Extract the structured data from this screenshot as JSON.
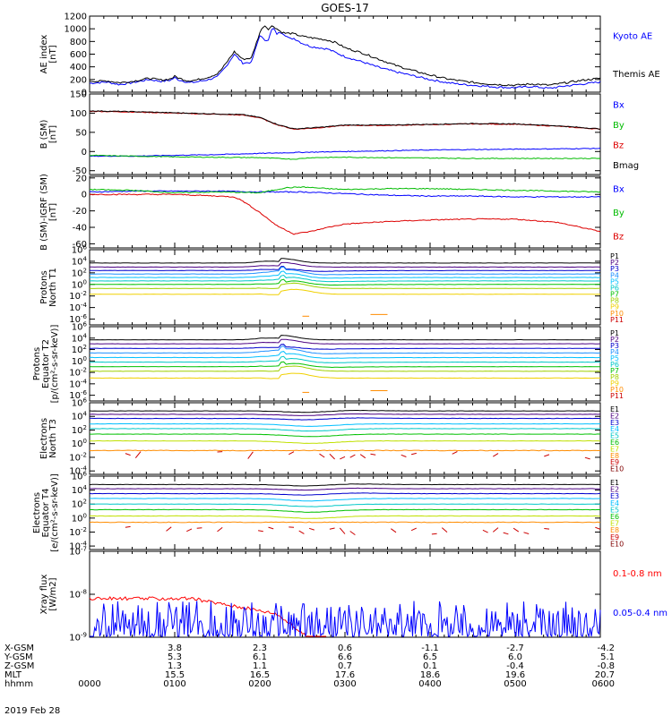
{
  "figure": {
    "title": "GOES-17",
    "date_label": "2019 Feb 28",
    "time_label": "hhmm"
  },
  "chart_data": [
    {
      "type": "line",
      "panel": "ae",
      "ylabel": [
        "AE index",
        "[nT]"
      ],
      "yticks": [
        "1200",
        "1000",
        "800",
        "600",
        "400",
        "200",
        "0"
      ],
      "ylim": [
        0,
        1200
      ],
      "legend": [
        {
          "name": "Kyoto AE",
          "color": "#0000ff"
        },
        {
          "name": "Themis AE",
          "color": "#000000"
        }
      ],
      "series": [
        {
          "name": "Kyoto AE",
          "color": "#0000ff",
          "x": [
            0,
            0.1,
            0.2,
            0.35,
            0.5,
            0.7,
            0.85,
            0.95,
            1.0,
            1.05,
            1.1,
            1.15,
            1.25,
            1.4,
            1.5,
            1.55,
            1.6,
            1.7,
            1.8,
            1.9,
            2.0,
            2.05,
            2.1,
            2.15,
            2.2,
            2.25,
            2.3,
            2.35,
            2.4,
            2.5,
            2.6,
            2.7,
            2.8,
            2.9,
            3.0,
            3.2,
            3.4,
            3.6,
            3.8,
            4.0,
            4.2,
            4.4,
            4.6,
            4.8,
            5.0,
            5.2,
            5.4,
            5.6,
            5.8,
            6.0
          ],
          "values": [
            140,
            150,
            160,
            120,
            150,
            200,
            170,
            190,
            230,
            190,
            180,
            150,
            160,
            200,
            240,
            320,
            400,
            600,
            460,
            470,
            900,
            820,
            830,
            1020,
            920,
            950,
            900,
            840,
            850,
            770,
            720,
            700,
            680,
            620,
            560,
            480,
            390,
            320,
            260,
            200,
            150,
            120,
            100,
            80,
            70,
            90,
            60,
            100,
            130,
            160
          ]
        },
        {
          "name": "Themis AE",
          "color": "#000000",
          "x": [
            0,
            0.1,
            0.2,
            0.35,
            0.5,
            0.7,
            0.85,
            0.95,
            1.0,
            1.05,
            1.1,
            1.15,
            1.25,
            1.4,
            1.5,
            1.55,
            1.6,
            1.7,
            1.8,
            1.9,
            2.0,
            2.05,
            2.1,
            2.15,
            2.2,
            2.25,
            2.3,
            2.35,
            2.4,
            2.5,
            2.6,
            2.7,
            2.8,
            2.9,
            3.0,
            3.2,
            3.4,
            3.6,
            3.8,
            4.0,
            4.2,
            4.4,
            4.6,
            4.8,
            5.0,
            5.2,
            5.4,
            5.6,
            5.8,
            6.0
          ],
          "values": [
            180,
            170,
            180,
            150,
            170,
            220,
            190,
            210,
            250,
            220,
            200,
            180,
            190,
            240,
            290,
            360,
            450,
            640,
            520,
            540,
            940,
            1060,
            1000,
            1050,
            1000,
            950,
            930,
            930,
            920,
            880,
            860,
            840,
            820,
            780,
            700,
            620,
            520,
            420,
            340,
            270,
            210,
            170,
            140,
            120,
            110,
            130,
            110,
            150,
            190,
            220
          ]
        }
      ]
    },
    {
      "type": "line",
      "panel": "b-sm",
      "ylabel": [
        "B (SM)",
        "[nT]"
      ],
      "yticks": [
        "150",
        "100",
        "50",
        "0",
        "-50"
      ],
      "ylim": [
        -60,
        150
      ],
      "legend": [
        {
          "name": "Bx",
          "color": "#0000ff"
        },
        {
          "name": "By",
          "color": "#00bb00"
        },
        {
          "name": "Bz",
          "color": "#dd0000"
        },
        {
          "name": "Bmag",
          "color": "#000000"
        }
      ],
      "series": [
        {
          "name": "Bz",
          "color": "#dd0000",
          "x": [
            0,
            0.5,
            1.0,
            1.5,
            1.8,
            2.0,
            2.2,
            2.4,
            2.7,
            3.0,
            3.5,
            4.0,
            4.5,
            5.0,
            5.5,
            6.0
          ],
          "values": [
            105,
            103,
            100,
            97,
            95,
            88,
            70,
            58,
            62,
            68,
            68,
            70,
            72,
            71,
            66,
            58
          ]
        },
        {
          "name": "Bmag",
          "color": "#000000",
          "x": [
            0,
            0.5,
            1.0,
            1.5,
            1.8,
            2.0,
            2.2,
            2.4,
            2.7,
            3.0,
            3.5,
            4.0,
            4.5,
            5.0,
            5.5,
            6.0
          ],
          "values": [
            106,
            104,
            101,
            98,
            96,
            89,
            71,
            59,
            63,
            69,
            69,
            71,
            73,
            72,
            67,
            59
          ]
        },
        {
          "name": "Bx",
          "color": "#0000ff",
          "x": [
            0,
            0.5,
            1.0,
            1.5,
            2.0,
            2.5,
            3.0,
            3.5,
            4.0,
            4.5,
            5.0,
            5.5,
            6.0
          ],
          "values": [
            -12,
            -12,
            -10,
            -8,
            -5,
            -2,
            0,
            2,
            4,
            5,
            6,
            7,
            8
          ]
        },
        {
          "name": "By",
          "color": "#00bb00",
          "x": [
            0,
            0.5,
            1.0,
            1.5,
            2.0,
            2.4,
            2.6,
            3.0,
            3.5,
            4.0,
            4.5,
            5.0,
            5.5,
            6.0
          ],
          "values": [
            -10,
            -12,
            -14,
            -15,
            -16,
            -20,
            -16,
            -15,
            -16,
            -17,
            -18,
            -18,
            -18,
            -18
          ]
        }
      ]
    },
    {
      "type": "line",
      "panel": "b-sm-igrf",
      "ylabel": [
        "B (SM)-IGRF (SM)",
        "[nT]"
      ],
      "yticks": [
        "20",
        "0",
        "-20",
        "-40",
        "-60"
      ],
      "ylim": [
        -65,
        22
      ],
      "legend": [
        {
          "name": "Bx",
          "color": "#0000ff"
        },
        {
          "name": "By",
          "color": "#00bb00"
        },
        {
          "name": "Bz",
          "color": "#dd0000"
        }
      ],
      "series": [
        {
          "name": "Bx",
          "color": "#0000ff",
          "x": [
            0,
            0.5,
            1.0,
            1.5,
            2.0,
            2.5,
            3.0,
            3.5,
            4.0,
            4.5,
            5.0,
            5.5,
            6.0
          ],
          "values": [
            3,
            4,
            4,
            4,
            3,
            3,
            1,
            -1,
            -2,
            -2,
            -3,
            -3,
            -3
          ]
        },
        {
          "name": "By",
          "color": "#00bb00",
          "x": [
            0,
            0.5,
            1.0,
            1.5,
            2.0,
            2.3,
            2.5,
            2.8,
            3.0,
            3.5,
            4.0,
            4.5,
            5.0,
            5.5,
            6.0
          ],
          "values": [
            6,
            5,
            2,
            3,
            2,
            8,
            9,
            7,
            6,
            7,
            7,
            6,
            5,
            4,
            3
          ]
        },
        {
          "name": "Bz",
          "color": "#dd0000",
          "x": [
            0,
            0.5,
            1.0,
            1.5,
            1.7,
            1.8,
            2.0,
            2.2,
            2.4,
            2.6,
            2.8,
            3.0,
            3.5,
            4.0,
            4.5,
            5.0,
            5.5,
            6.0
          ],
          "values": [
            0,
            0,
            0,
            -2,
            -3,
            -8,
            -22,
            -38,
            -48,
            -45,
            -40,
            -36,
            -33,
            -31,
            -30,
            -30,
            -34,
            -45
          ]
        }
      ]
    },
    {
      "type": "line",
      "panel": "protons-north",
      "ylabel": [
        "Protons",
        "North T1"
      ],
      "yscale": "log",
      "yticks": [
        "10^6",
        "10^4",
        "10^2",
        "10^0",
        "10^-2",
        "10^-4",
        "10^-6"
      ],
      "ylim_log10": [
        -7,
        6
      ],
      "channels": [
        {
          "name": "P1",
          "color": "#000000",
          "level": 3.7
        },
        {
          "name": "P2",
          "color": "#4b0082",
          "level": 3.0
        },
        {
          "name": "P3",
          "color": "#0000cd",
          "level": 2.4
        },
        {
          "name": "P4",
          "color": "#1e90ff",
          "level": 1.8
        },
        {
          "name": "P5",
          "color": "#00bfff",
          "level": 1.2
        },
        {
          "name": "P6",
          "color": "#00c8c8",
          "level": 0.6
        },
        {
          "name": "P7",
          "color": "#00c000",
          "level": 0.0
        },
        {
          "name": "P8",
          "color": "#a0d000",
          "level": -0.7
        },
        {
          "name": "P9",
          "color": "#f0d000",
          "level": -1.7
        },
        {
          "name": "P10",
          "color": "#ff8c00",
          "level": -5.5
        },
        {
          "name": "P11",
          "color": "#cc0000",
          "level": -6.5
        }
      ]
    },
    {
      "type": "line",
      "panel": "protons-equator",
      "ylabel": [
        "Protons",
        "Equator T2",
        "[p/(cm²-s-sr-keV)]"
      ],
      "yscale": "log",
      "yticks": [
        "10^6",
        "10^4",
        "10^2",
        "10^0",
        "10^-2",
        "10^-4",
        "10^-6"
      ],
      "ylim_log10": [
        -7,
        6
      ],
      "channels": [
        {
          "name": "P1",
          "color": "#000000",
          "level": 3.7
        },
        {
          "name": "P2",
          "color": "#4b0082",
          "level": 3.0
        },
        {
          "name": "P3",
          "color": "#0000cd",
          "level": 2.2
        },
        {
          "name": "P4",
          "color": "#1e90ff",
          "level": 1.4
        },
        {
          "name": "P5",
          "color": "#00bfff",
          "level": 0.6
        },
        {
          "name": "P6",
          "color": "#00c8c8",
          "level": -0.2
        },
        {
          "name": "P7",
          "color": "#00c000",
          "level": -1.0
        },
        {
          "name": "P8",
          "color": "#a0d000",
          "level": -1.8
        },
        {
          "name": "P9",
          "color": "#f0d000",
          "level": -3.0
        },
        {
          "name": "P10",
          "color": "#ff8c00",
          "level": -5.5
        },
        {
          "name": "P11",
          "color": "#cc0000",
          "level": -6.5
        }
      ]
    },
    {
      "type": "line",
      "panel": "electrons-north",
      "ylabel": [
        "Electrons",
        "North T3"
      ],
      "yscale": "log",
      "yticks": [
        "10^6",
        "10^4",
        "10^2",
        "10^0",
        "10^-2",
        "10^-4"
      ],
      "ylim_log10": [
        -4.5,
        6
      ],
      "channels": [
        {
          "name": "E1",
          "color": "#000000",
          "level": 4.8
        },
        {
          "name": "E2",
          "color": "#4b0082",
          "level": 4.3
        },
        {
          "name": "E3",
          "color": "#0000cd",
          "level": 3.7
        },
        {
          "name": "E4",
          "color": "#00bfff",
          "level": 2.9
        },
        {
          "name": "E5",
          "color": "#00c8c8",
          "level": 2.2
        },
        {
          "name": "E6",
          "color": "#00c000",
          "level": 1.4
        },
        {
          "name": "E7",
          "color": "#c0e000",
          "level": 0.4
        },
        {
          "name": "E8",
          "color": "#ff8c00",
          "level": -1.0
        },
        {
          "name": "E9",
          "color": "#cc0000",
          "level": -1.7
        },
        {
          "name": "E10",
          "color": "#800000",
          "level": -4.2
        }
      ]
    },
    {
      "type": "line",
      "panel": "electrons-equator",
      "ylabel": [
        "Electrons",
        "Equator T4",
        "[e/(cm²-s-sr-keV)]"
      ],
      "yscale": "log",
      "yticks": [
        "10^6",
        "10^4",
        "10^2",
        "10^0",
        "10^-2",
        "10^-4"
      ],
      "ylim_log10": [
        -4.5,
        6
      ],
      "channels": [
        {
          "name": "E1",
          "color": "#000000",
          "level": 4.8
        },
        {
          "name": "E2",
          "color": "#4b0082",
          "level": 4.2
        },
        {
          "name": "E3",
          "color": "#0000cd",
          "level": 3.5
        },
        {
          "name": "E4",
          "color": "#00bfff",
          "level": 2.8
        },
        {
          "name": "E5",
          "color": "#00c8c8",
          "level": 2.0
        },
        {
          "name": "E6",
          "color": "#00c000",
          "level": 1.2
        },
        {
          "name": "E7",
          "color": "#c0e000",
          "level": 0.3
        },
        {
          "name": "E8",
          "color": "#ff8c00",
          "level": -0.6
        },
        {
          "name": "E9",
          "color": "#cc0000",
          "level": -1.8
        },
        {
          "name": "E10",
          "color": "#800000",
          "level": -4.2
        }
      ]
    },
    {
      "type": "line",
      "panel": "xray",
      "ylabel": [
        "Xray flux",
        "[W/m2]"
      ],
      "yscale": "log",
      "yticks": [
        "10^-7",
        "10^-8",
        "10^-9"
      ],
      "ylim_log10": [
        -9,
        -7
      ],
      "legend": [
        {
          "name": "0.1-0.8 nm",
          "color": "#ff0000"
        },
        {
          "name": "0.05-0.4 nm",
          "color": "#0000ff"
        }
      ]
    }
  ],
  "x_axis": {
    "range_hours": [
      0,
      6
    ],
    "rows": [
      {
        "label": "X-GSM",
        "values": [
          "",
          "3.8",
          "2.3",
          "0.6",
          "-1.1",
          "-2.7",
          "-4.2"
        ]
      },
      {
        "label": "Y-GSM",
        "values": [
          "",
          "5.3",
          "6.1",
          "6.6",
          "6.5",
          "6.0",
          "5.1"
        ]
      },
      {
        "label": "Z-GSM",
        "values": [
          "",
          "1.3",
          "1.1",
          "0.7",
          "0.1",
          "-0.4",
          "-0.8"
        ]
      },
      {
        "label": "MLT",
        "values": [
          "",
          "15.5",
          "16.5",
          "17.6",
          "18.6",
          "19.6",
          "20.7"
        ]
      },
      {
        "label": "hhmm",
        "values": [
          "0000",
          "0100",
          "0200",
          "0300",
          "0400",
          "0500",
          "0600"
        ]
      }
    ]
  }
}
